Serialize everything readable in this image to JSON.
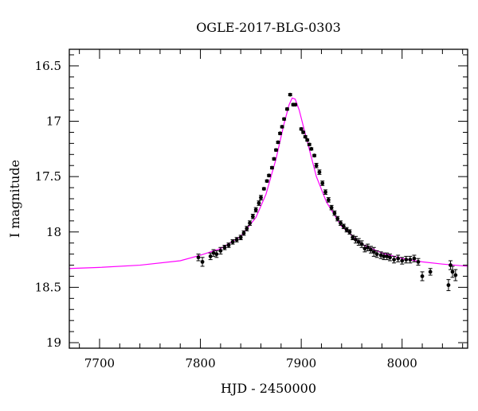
{
  "chart_data": {
    "type": "scatter",
    "title": "OGLE-2017-BLG-0303",
    "xlabel": "HJD - 2450000",
    "ylabel": "I magnitude",
    "xlim": [
      7670,
      8065
    ],
    "ylim": [
      19.05,
      16.35
    ],
    "y_inverted": true,
    "grid": false,
    "x_ticks": [
      7700,
      7800,
      7900,
      8000
    ],
    "x_tick_labels": [
      "7700",
      "7800",
      "7900",
      "8000"
    ],
    "y_ticks": [
      16.5,
      17,
      17.5,
      18,
      18.5,
      19
    ],
    "y_tick_labels": [
      "16.5",
      "17",
      "17.5",
      "18",
      "18.5",
      "19"
    ],
    "colors": {
      "data": "#000000",
      "model": "#ff00ff"
    },
    "series": [
      {
        "kind": "points",
        "x": [
          7798,
          7802,
          7810,
          7813,
          7816,
          7820,
          7824,
          7828,
          7832,
          7836,
          7840,
          7843,
          7846,
          7849,
          7852,
          7855,
          7858,
          7860,
          7863,
          7866,
          7868,
          7871,
          7873,
          7875,
          7877,
          7879,
          7881,
          7883,
          7886,
          7889,
          7892,
          7894,
          7900,
          7902,
          7904,
          7906,
          7908,
          7910,
          7913,
          7915,
          7918,
          7921,
          7924,
          7927,
          7930,
          7933,
          7936,
          7939,
          7942,
          7945,
          7948,
          7951,
          7954,
          7957,
          7960,
          7963,
          7966,
          7969,
          7972,
          7975,
          7979,
          7982,
          7985,
          7988,
          7992,
          7996,
          8000,
          8004,
          8008,
          8012,
          8016,
          8020,
          8028,
          8046,
          8048,
          8050,
          8053
        ],
        "y": [
          18.23,
          18.27,
          18.22,
          18.19,
          18.2,
          18.17,
          18.14,
          18.12,
          18.09,
          18.07,
          18.05,
          18.01,
          17.97,
          17.92,
          17.86,
          17.8,
          17.74,
          17.69,
          17.61,
          17.54,
          17.49,
          17.42,
          17.34,
          17.26,
          17.19,
          17.11,
          17.05,
          16.98,
          16.89,
          16.76,
          16.85,
          16.85,
          17.07,
          17.1,
          17.14,
          17.17,
          17.21,
          17.25,
          17.31,
          17.4,
          17.46,
          17.56,
          17.64,
          17.71,
          17.78,
          17.83,
          17.88,
          17.92,
          17.95,
          17.98,
          18.0,
          18.05,
          18.07,
          18.09,
          18.11,
          18.15,
          18.14,
          18.16,
          18.18,
          18.2,
          18.21,
          18.22,
          18.22,
          18.23,
          18.25,
          18.24,
          18.26,
          18.25,
          18.25,
          18.24,
          18.27,
          18.4,
          18.36,
          18.48,
          18.3,
          18.36,
          18.39
        ],
        "yerr": [
          0.03,
          0.04,
          0.03,
          0.03,
          0.03,
          0.03,
          0.02,
          0.02,
          0.02,
          0.02,
          0.02,
          0.02,
          0.02,
          0.02,
          0.02,
          0.02,
          0.02,
          0.02,
          0.01,
          0.01,
          0.01,
          0.01,
          0.01,
          0.01,
          0.01,
          0.01,
          0.01,
          0.01,
          0.01,
          0.01,
          0.01,
          0.01,
          0.01,
          0.01,
          0.01,
          0.01,
          0.01,
          0.01,
          0.01,
          0.02,
          0.02,
          0.02,
          0.02,
          0.02,
          0.02,
          0.02,
          0.02,
          0.02,
          0.02,
          0.02,
          0.02,
          0.02,
          0.03,
          0.03,
          0.03,
          0.03,
          0.03,
          0.03,
          0.04,
          0.03,
          0.03,
          0.03,
          0.03,
          0.03,
          0.03,
          0.03,
          0.03,
          0.03,
          0.03,
          0.03,
          0.03,
          0.04,
          0.03,
          0.05,
          0.04,
          0.05,
          0.05
        ]
      },
      {
        "kind": "model-curve",
        "x": [
          7670,
          7700,
          7740,
          7780,
          7800,
          7820,
          7840,
          7855,
          7865,
          7875,
          7883,
          7888,
          7891,
          7894,
          7898,
          7905,
          7915,
          7925,
          7940,
          7960,
          7980,
          8000,
          8020,
          8040,
          8065
        ],
        "y": [
          18.33,
          18.32,
          18.3,
          18.26,
          18.21,
          18.15,
          18.04,
          17.87,
          17.66,
          17.34,
          17.02,
          16.85,
          16.79,
          16.8,
          16.9,
          17.15,
          17.5,
          17.73,
          17.95,
          18.11,
          18.19,
          18.24,
          18.27,
          18.29,
          18.31
        ]
      }
    ]
  }
}
